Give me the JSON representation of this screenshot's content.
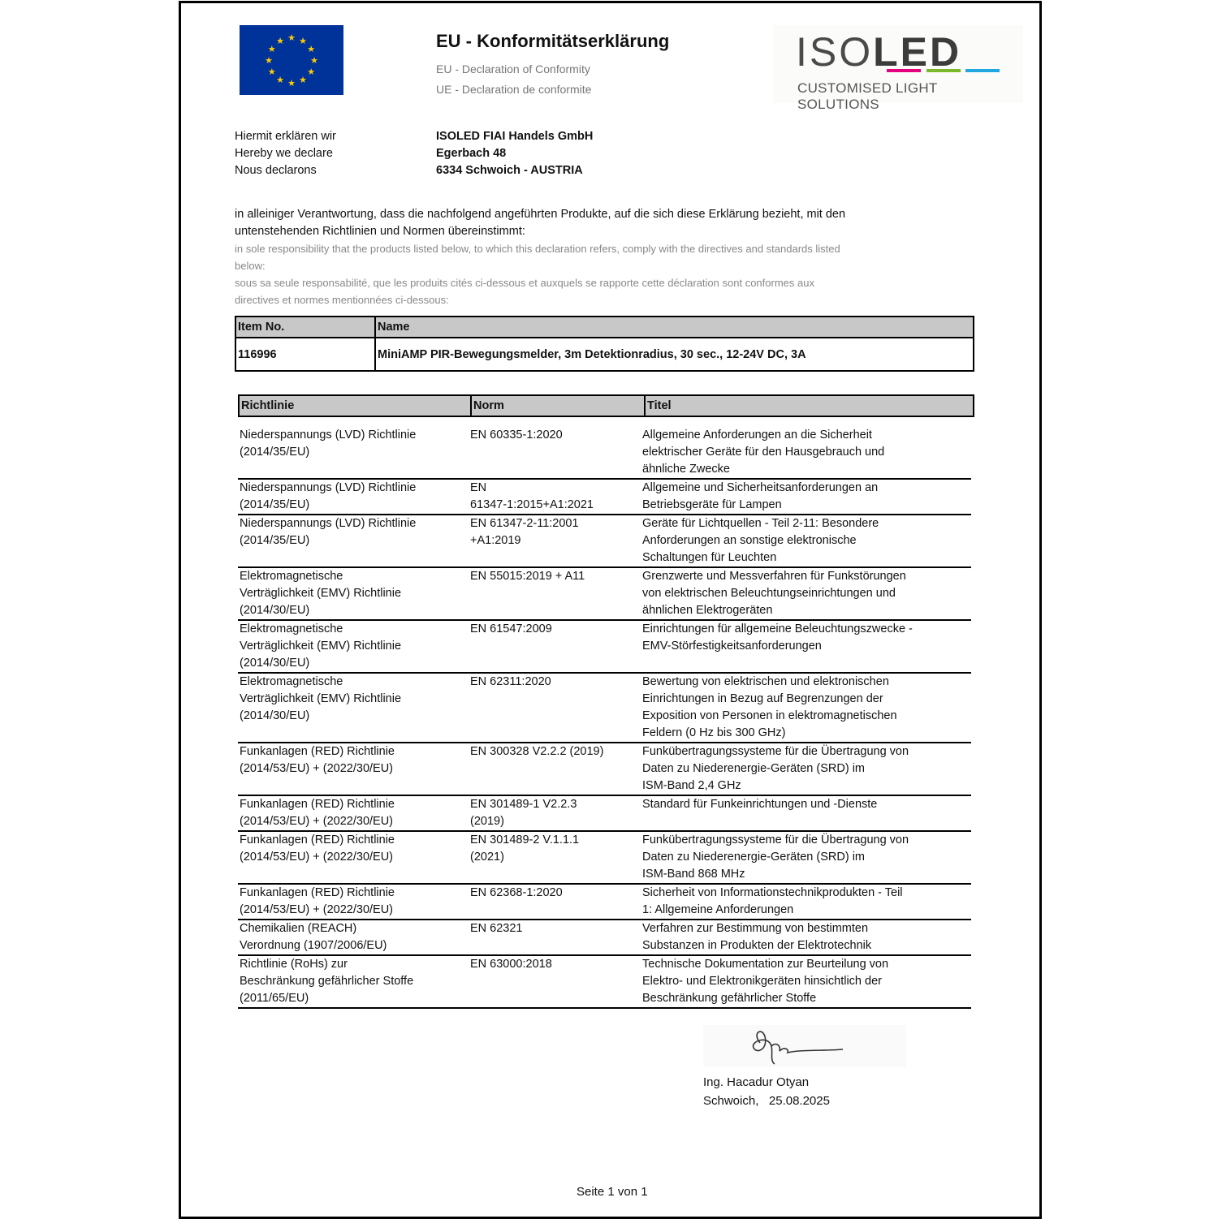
{
  "header": {
    "title": "EU - Konformitätserklärung",
    "subtitle_en": "EU - Declaration of Conformity",
    "subtitle_fr": "UE - Declaration de conformite",
    "logo": {
      "text_light": "ISO",
      "text_bold": "LED",
      "tagline": "CUSTOMISED LIGHT SOLUTIONS",
      "colors": [
        "#e5007d",
        "#7ab929",
        "#21a8e1"
      ]
    },
    "flag_icon": "eu-flag-icon"
  },
  "declarant": {
    "labels": [
      "Hiermit erklären wir",
      "Hereby we declare",
      "Nous declarons"
    ],
    "company": "ISOLED FIAI Handels GmbH",
    "street": "Egerbach 48",
    "city": "6334 Schwoich - AUSTRIA"
  },
  "intro": {
    "de": "in alleiniger Verantwortung, dass die nachfolgend angeführten Produkte, auf die sich diese Erklärung bezieht, mit den untenstehenden Richtlinien und Normen übereinstimmt:",
    "en": "in sole responsibility that the products listed below, to which this declaration refers, comply with the directives and standards listed below:",
    "fr": "sous sa seule responsabilité, que les produits cités ci-dessous et auxquels se rapporte cette déclaration sont conformes aux directives et normes mentionnées ci-dessous:"
  },
  "product_table": {
    "headers": [
      "Item No.",
      "Name"
    ],
    "rows": [
      [
        "116996",
        "MiniAMP PIR-Bewegungsmelder, 3m Detektionradius, 30 sec., 12-24V DC, 3A"
      ]
    ]
  },
  "norms_table": {
    "headers": [
      "Richtlinie",
      "Norm",
      "Titel"
    ],
    "rows": [
      {
        "directive": [
          "Niederspannungs (LVD) Richtlinie",
          "(2014/35/EU)"
        ],
        "norm": [
          "EN 60335-1:2020"
        ],
        "title": [
          "Allgemeine Anforderungen an die Sicherheit",
          "elektrischer Geräte für den Hausgebrauch und",
          "ähnliche Zwecke"
        ]
      },
      {
        "directive": [
          "Niederspannungs (LVD) Richtlinie",
          "(2014/35/EU)"
        ],
        "norm": [
          "EN",
          "61347-1:2015+A1:2021"
        ],
        "title": [
          "Allgemeine und Sicherheitsanforderungen an",
          "Betriebsgeräte für Lampen"
        ]
      },
      {
        "directive": [
          "Niederspannungs (LVD) Richtlinie",
          "(2014/35/EU)"
        ],
        "norm": [
          "EN 61347-2-11:2001",
          "+A1:2019"
        ],
        "title": [
          "Geräte für Lichtquellen - Teil 2-11: Besondere",
          "Anforderungen an sonstige elektronische",
          "Schaltungen für Leuchten"
        ]
      },
      {
        "directive": [
          "Elektromagnetische",
          "Verträglichkeit (EMV) Richtlinie",
          "(2014/30/EU)"
        ],
        "norm": [
          "EN 55015:2019 + A11"
        ],
        "title": [
          "Grenzwerte und Messverfahren für Funkstörungen",
          "von elektrischen Beleuchtungseinrichtungen und",
          "ähnlichen Elektrogeräten"
        ]
      },
      {
        "directive": [
          "Elektromagnetische",
          "Verträglichkeit (EMV) Richtlinie",
          "(2014/30/EU)"
        ],
        "norm": [
          "EN 61547:2009"
        ],
        "title": [
          "Einrichtungen für allgemeine Beleuchtungszwecke -",
          "EMV-Störfestigkeitsanforderungen"
        ]
      },
      {
        "directive": [
          "Elektromagnetische",
          "Verträglichkeit (EMV) Richtlinie",
          "(2014/30/EU)"
        ],
        "norm": [
          "EN 62311:2020"
        ],
        "title": [
          "Bewertung von elektrischen und elektronischen",
          "Einrichtungen in Bezug auf Begrenzungen der",
          "Exposition von Personen in elektromagnetischen",
          "Feldern (0 Hz bis 300 GHz)"
        ]
      },
      {
        "directive": [
          "Funkanlagen (RED) Richtlinie",
          "(2014/53/EU) + (2022/30/EU)"
        ],
        "norm": [
          "EN 300328 V2.2.2 (2019)"
        ],
        "title": [
          "Funkübertragungssysteme für die Übertragung von",
          "Daten zu Niederenergie-Geräten (SRD) im",
          "ISM-Band 2,4 GHz"
        ]
      },
      {
        "directive": [
          "Funkanlagen (RED) Richtlinie",
          "(2014/53/EU) + (2022/30/EU)"
        ],
        "norm": [
          "EN 301489-1 V2.2.3",
          "(2019)"
        ],
        "title": [
          "Standard für Funkeinrichtungen und -Dienste"
        ]
      },
      {
        "directive": [
          "Funkanlagen (RED) Richtlinie",
          "(2014/53/EU) + (2022/30/EU)"
        ],
        "norm": [
          "EN 301489-2 V.1.1.1",
          "(2021)"
        ],
        "title": [
          "Funkübertragungssysteme für die Übertragung von",
          "Daten zu Niederenergie-Geräten (SRD) im",
          "ISM-Band 868 MHz"
        ]
      },
      {
        "directive": [
          "Funkanlagen (RED) Richtlinie",
          "(2014/53/EU) + (2022/30/EU)"
        ],
        "norm": [
          "EN 62368-1:2020"
        ],
        "title": [
          "Sicherheit von Informationstechnikprodukten - Teil",
          "1: Allgemeine Anforderungen"
        ]
      },
      {
        "directive": [
          "Chemikalien (REACH)",
          "Verordnung (1907/2006/EU)"
        ],
        "norm": [
          "EN 62321"
        ],
        "title": [
          "Verfahren zur Bestimmung von bestimmten",
          "Substanzen in Produkten der Elektrotechnik"
        ]
      },
      {
        "directive": [
          "Richtlinie (RoHs) zur",
          "Beschränkung gefährlicher Stoffe",
          "(2011/65/EU)"
        ],
        "norm": [
          "EN 63000:2018"
        ],
        "title": [
          "Technische Dokumentation zur Beurteilung von",
          "Elektro- und Elektronikgeräten hinsichtlich der",
          "Beschränkung gefährlicher Stoffe"
        ]
      }
    ]
  },
  "signature": {
    "name": "Ing. Hacadur Otyan",
    "place": "Schwoich,",
    "date": "25.08.2025"
  },
  "footer": {
    "page": "Seite 1 von 1"
  }
}
